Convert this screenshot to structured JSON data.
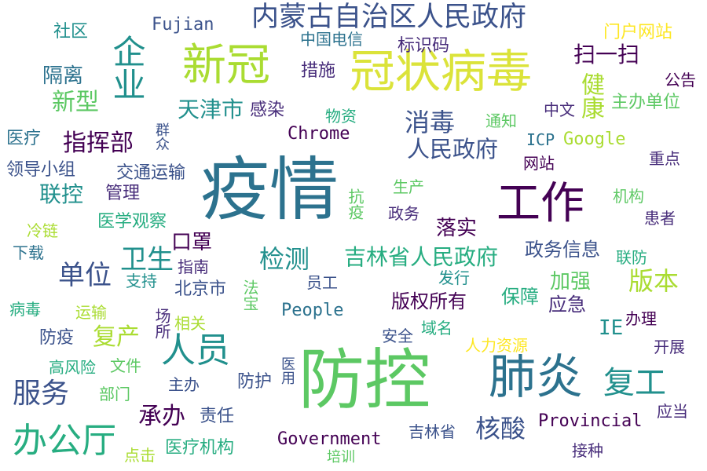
{
  "colors": {
    "background": "#ffffff",
    "palette": [
      "#440154",
      "#472c7a",
      "#3b528b",
      "#2c728e",
      "#21908d",
      "#27ad81",
      "#5cc863",
      "#aadc32",
      "#fde725"
    ]
  },
  "words": [
    {
      "id": "yiqing",
      "text": "疫情",
      "color": "#2c728e"
    },
    {
      "id": "fangkong",
      "text": "防控",
      "color": "#5cc863"
    },
    {
      "id": "guanzhuang",
      "text": "冠状病毒",
      "color": "#dbe33a"
    },
    {
      "id": "feiyan",
      "text": "肺炎",
      "color": "#2c728e"
    },
    {
      "id": "gongzuo",
      "text": "工作",
      "color": "#440154"
    },
    {
      "id": "xinguan",
      "text": "新冠",
      "color": "#aadc32"
    },
    {
      "id": "neimenggu",
      "text": "内蒙古自治区人民政府",
      "color": "#3b528b"
    },
    {
      "id": "renyuan",
      "text": "人员",
      "color": "#21908d"
    },
    {
      "id": "bangongting",
      "text": "办公厅",
      "color": "#27ad81"
    },
    {
      "id": "qiye",
      "text": "企业",
      "color": "#21908d"
    },
    {
      "id": "fugong",
      "text": "复工",
      "color": "#21908d"
    },
    {
      "id": "fuwu",
      "text": "服务",
      "color": "#3b528b"
    },
    {
      "id": "renminzhengfu",
      "text": "人民政府",
      "color": "#3b528b"
    },
    {
      "id": "tianjin",
      "text": "天津市",
      "color": "#21908d"
    },
    {
      "id": "jilinzhengfu",
      "text": "吉林省人民政府",
      "color": "#27ad81"
    },
    {
      "id": "jiance",
      "text": "检测",
      "color": "#21908d"
    },
    {
      "id": "weisheng",
      "text": "卫生",
      "color": "#21908d"
    },
    {
      "id": "danwei",
      "text": "单位",
      "color": "#3b528b"
    },
    {
      "id": "hesuan",
      "text": "核酸",
      "color": "#3b528b"
    },
    {
      "id": "xiaodu",
      "text": "消毒",
      "color": "#3b528b"
    },
    {
      "id": "zhihuibu",
      "text": "指挥部",
      "color": "#440154"
    },
    {
      "id": "banben",
      "text": "版本",
      "color": "#aadc32"
    },
    {
      "id": "jiankang",
      "text": "健康",
      "color": "#aadc32"
    },
    {
      "id": "chengban",
      "text": "承办",
      "color": "#440154"
    },
    {
      "id": "saoyisao",
      "text": "扫一扫",
      "color": "#440154"
    },
    {
      "id": "fuchan",
      "text": "复产",
      "color": "#aadc32"
    },
    {
      "id": "xinxing",
      "text": "新型",
      "color": "#5cc863"
    },
    {
      "id": "chrome",
      "text": "Chrome",
      "color": "#440154"
    },
    {
      "id": "government",
      "text": "Government",
      "color": "#440154"
    },
    {
      "id": "provincial",
      "text": "Provincial",
      "color": "#440154"
    },
    {
      "id": "people",
      "text": "People",
      "color": "#2c728e"
    },
    {
      "id": "google",
      "text": "Google",
      "color": "#aadc32"
    },
    {
      "id": "fujian",
      "text": "Fujian",
      "color": "#3b528b"
    },
    {
      "id": "icp",
      "text": "ICP",
      "color": "#2c728e"
    },
    {
      "id": "ie",
      "text": "IE",
      "color": "#21908d"
    },
    {
      "id": "luoshi",
      "text": "落实",
      "color": "#440154"
    },
    {
      "id": "jiaqiang",
      "text": "加强",
      "color": "#5cc863"
    },
    {
      "id": "zhengwuxinxi",
      "text": "政务信息",
      "color": "#3b528b"
    },
    {
      "id": "banquan",
      "text": "版权所有",
      "color": "#440154"
    },
    {
      "id": "baozhang",
      "text": "保障",
      "color": "#27ad81"
    },
    {
      "id": "yingji",
      "text": "应急",
      "color": "#472c7a"
    },
    {
      "id": "menhu",
      "text": "门户网站",
      "color": "#fde725"
    },
    {
      "id": "zhubandanwei",
      "text": "主办单位",
      "color": "#5cc863"
    },
    {
      "id": "gonggao",
      "text": "公告",
      "color": "#440154"
    },
    {
      "id": "zhongwen",
      "text": "中文",
      "color": "#472c7a"
    },
    {
      "id": "biaoshima",
      "text": "标识码",
      "color": "#472c7a"
    },
    {
      "id": "zhongguodianxin",
      "text": "中国电信",
      "color": "#2c728e"
    },
    {
      "id": "cuoshi",
      "text": "措施",
      "color": "#472c7a"
    },
    {
      "id": "shequ",
      "text": "社区",
      "color": "#21908d"
    },
    {
      "id": "geli",
      "text": "隔离",
      "color": "#2c728e"
    },
    {
      "id": "yiliao",
      "text": "医疗",
      "color": "#2c728e"
    },
    {
      "id": "lingdaoxiaozu",
      "text": "领导小组",
      "color": "#3b528b"
    },
    {
      "id": "jiaotong",
      "text": "交通运输",
      "color": "#3b528b"
    },
    {
      "id": "guanli",
      "text": "管理",
      "color": "#472c7a"
    },
    {
      "id": "liankong",
      "text": "联控",
      "color": "#21908d"
    },
    {
      "id": "lengian",
      "text": "冷链",
      "color": "#aadc32"
    },
    {
      "id": "yixueguancha",
      "text": "医学观察",
      "color": "#27ad81"
    },
    {
      "id": "xiazai",
      "text": "下载",
      "color": "#2c728e"
    },
    {
      "id": "kouzhao",
      "text": "口罩",
      "color": "#440154"
    },
    {
      "id": "zhichi",
      "text": "支持",
      "color": "#21908d"
    },
    {
      "id": "zhinan",
      "text": "指南",
      "color": "#472c7a"
    },
    {
      "id": "beijing",
      "text": "北京市",
      "color": "#3b528b"
    },
    {
      "id": "bingdu",
      "text": "病毒",
      "color": "#27ad81"
    },
    {
      "id": "yunshu",
      "text": "运输",
      "color": "#aadc32"
    },
    {
      "id": "fangyi",
      "text": "防疫",
      "color": "#3b528b"
    },
    {
      "id": "xiangguan",
      "text": "相关",
      "color": "#aadc32"
    },
    {
      "id": "gaofengxian",
      "text": "高风险",
      "color": "#27ad81"
    },
    {
      "id": "wenjian",
      "text": "文件",
      "color": "#5cc863"
    },
    {
      "id": "bumen",
      "text": "部门",
      "color": "#5cc863"
    },
    {
      "id": "zhuban",
      "text": "主办",
      "color": "#3b528b"
    },
    {
      "id": "zeren",
      "text": "责任",
      "color": "#3b528b"
    },
    {
      "id": "fanghu",
      "text": "防护",
      "color": "#3b528b"
    },
    {
      "id": "dianji",
      "text": "点击",
      "color": "#aadc32"
    },
    {
      "id": "yiliaojigou",
      "text": "医疗机构",
      "color": "#27ad81"
    },
    {
      "id": "peixun",
      "text": "培训",
      "color": "#5cc863"
    },
    {
      "id": "jilinsheng",
      "text": "吉林省",
      "color": "#3b528b"
    },
    {
      "id": "jiezhong",
      "text": "接种",
      "color": "#472c7a"
    },
    {
      "id": "yingdang",
      "text": "应当",
      "color": "#472c7a"
    },
    {
      "id": "kaizhan",
      "text": "开展",
      "color": "#472c7a"
    },
    {
      "id": "banli",
      "text": "办理",
      "color": "#440154"
    },
    {
      "id": "renliziyuan",
      "text": "人力资源",
      "color": "#fde725"
    },
    {
      "id": "anquan",
      "text": "安全",
      "color": "#3b528b"
    },
    {
      "id": "yuming",
      "text": "域名",
      "color": "#27ad81"
    },
    {
      "id": "fahang",
      "text": "发行",
      "color": "#21908d"
    },
    {
      "id": "yuangong",
      "text": "员工",
      "color": "#3b528b"
    },
    {
      "id": "lianfang",
      "text": "联防",
      "color": "#27ad81"
    },
    {
      "id": "huanzhe",
      "text": "患者",
      "color": "#472c7a"
    },
    {
      "id": "jigou",
      "text": "机构",
      "color": "#5cc863"
    },
    {
      "id": "zhongdian",
      "text": "重点",
      "color": "#472c7a"
    },
    {
      "id": "wangzhan",
      "text": "网站",
      "color": "#440154"
    },
    {
      "id": "zhengwu",
      "text": "政务",
      "color": "#472c7a"
    },
    {
      "id": "shengchan",
      "text": "生产",
      "color": "#5cc863"
    },
    {
      "id": "tongzhi",
      "text": "通知",
      "color": "#5cc863"
    },
    {
      "id": "wuzi",
      "text": "物资",
      "color": "#27ad81"
    },
    {
      "id": "ganran",
      "text": "感染",
      "color": "#472c7a"
    },
    {
      "id": "kangyi",
      "text": "抗疫",
      "color": "#5cc863"
    },
    {
      "id": "qunzhong",
      "text": "群众",
      "color": "#3b528b"
    },
    {
      "id": "changsuo",
      "text": "场所",
      "color": "#472c7a"
    },
    {
      "id": "fabao",
      "text": "法宝",
      "color": "#5cc863"
    },
    {
      "id": "yiyong",
      "text": "医用",
      "color": "#3b528b"
    }
  ]
}
